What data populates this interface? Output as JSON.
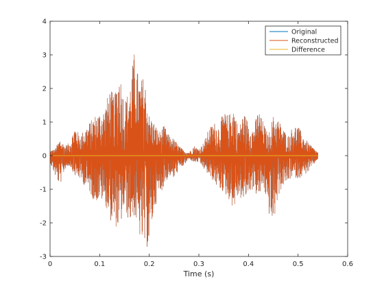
{
  "chart_data": {
    "type": "line",
    "title": "",
    "xlabel": "Time (s)",
    "ylabel": "",
    "xlim": [
      0,
      0.6
    ],
    "ylim": [
      -3,
      4
    ],
    "xticks": [
      0,
      0.1,
      0.2,
      0.3,
      0.4,
      0.5,
      0.6
    ],
    "yticks": [
      -3,
      -2,
      -1,
      0,
      1,
      2,
      3,
      4
    ],
    "xtick_labels": [
      "0",
      "0.1",
      "0.2",
      "0.3",
      "0.4",
      "0.5",
      "0.6"
    ],
    "ytick_labels": [
      "-3",
      "-2",
      "-1",
      "0",
      "1",
      "2",
      "3",
      "4"
    ],
    "grid": false,
    "legend_position": "top-right",
    "signal_duration": 0.54,
    "series": [
      {
        "name": "Original",
        "color": "#0072BD",
        "envelope": {
          "t": [
            0,
            0.01,
            0.02,
            0.03,
            0.04,
            0.05,
            0.06,
            0.07,
            0.08,
            0.09,
            0.1,
            0.11,
            0.12,
            0.13,
            0.14,
            0.15,
            0.16,
            0.17,
            0.18,
            0.19,
            0.2,
            0.21,
            0.22,
            0.23,
            0.24,
            0.25,
            0.26,
            0.27,
            0.28,
            0.29,
            0.3,
            0.31,
            0.32,
            0.33,
            0.34,
            0.35,
            0.36,
            0.37,
            0.38,
            0.39,
            0.4,
            0.41,
            0.42,
            0.43,
            0.44,
            0.45,
            0.46,
            0.47,
            0.48,
            0.49,
            0.5,
            0.51,
            0.52,
            0.53,
            0.54
          ],
          "max": [
            0.15,
            0.2,
            0.5,
            0.3,
            0.4,
            0.9,
            0.6,
            0.8,
            1.0,
            1.2,
            1.3,
            1.4,
            2.0,
            1.8,
            2.6,
            1.6,
            2.0,
            3.1,
            2.2,
            2.4,
            1.2,
            1.0,
            0.7,
            0.9,
            0.6,
            0.5,
            0.3,
            0.15,
            0.1,
            0.3,
            0.2,
            0.4,
            0.8,
            1.0,
            0.9,
            1.3,
            1.2,
            1.5,
            0.8,
            1.3,
            1.0,
            0.8,
            1.4,
            1.0,
            0.6,
            1.2,
            1.1,
            0.8,
            0.6,
            0.9,
            0.9,
            0.6,
            0.4,
            0.25,
            0.1
          ],
          "min": [
            -0.2,
            -0.6,
            -0.9,
            -0.4,
            -0.3,
            -0.6,
            -0.7,
            -0.9,
            -1.1,
            -1.4,
            -1.3,
            -1.4,
            -1.9,
            -2.1,
            -2.2,
            -1.6,
            -2.0,
            -1.8,
            -2.4,
            -2.8,
            -2.7,
            -1.6,
            -1.2,
            -0.9,
            -0.6,
            -0.7,
            -0.4,
            -0.3,
            -0.1,
            -0.2,
            -0.2,
            -0.4,
            -0.6,
            -0.8,
            -1.0,
            -1.1,
            -1.3,
            -1.6,
            -1.2,
            -1.4,
            -1.1,
            -1.0,
            -1.3,
            -0.9,
            -1.7,
            -2.1,
            -1.2,
            -0.9,
            -0.8,
            -0.6,
            -0.7,
            -0.6,
            -0.5,
            -0.3,
            -0.1
          ]
        }
      },
      {
        "name": "Reconstructed",
        "color": "#D95319",
        "envelope_same_as": "Original"
      },
      {
        "name": "Difference",
        "color": "#EDB120",
        "constant_value": 0
      }
    ]
  }
}
